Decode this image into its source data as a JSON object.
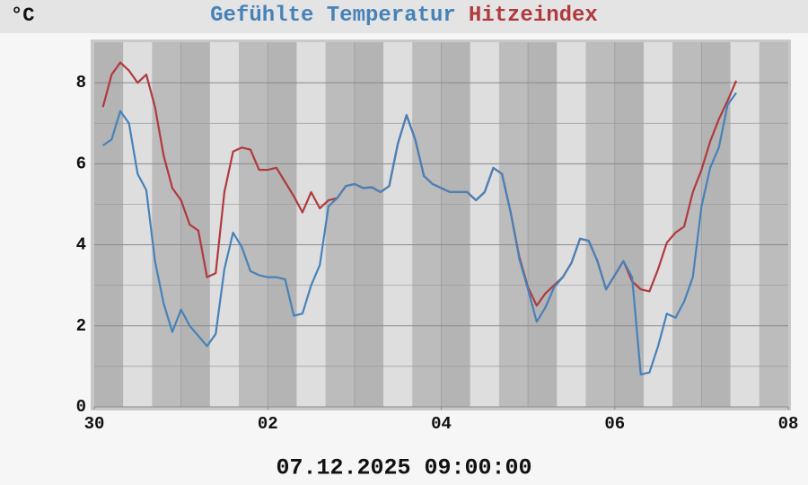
{
  "chart_data": {
    "type": "line",
    "y_label": "°C",
    "footer": "07.12.2025 09:00:00",
    "x": [
      0.1,
      0.2,
      0.3,
      0.4,
      0.5,
      0.6,
      0.7,
      0.8,
      0.9,
      1.0,
      1.1,
      1.2,
      1.3,
      1.4,
      1.5,
      1.6,
      1.7,
      1.8,
      1.9,
      2.0,
      2.1,
      2.2,
      2.3,
      2.4,
      2.5,
      2.6,
      2.7,
      2.8,
      2.9,
      3.0,
      3.1,
      3.2,
      3.3,
      3.4,
      3.5,
      3.6,
      3.7,
      3.8,
      3.9,
      4.0,
      4.1,
      4.2,
      4.3,
      4.4,
      4.5,
      4.6,
      4.7,
      4.8,
      4.9,
      5.0,
      5.1,
      5.2,
      5.3,
      5.4,
      5.5,
      5.6,
      5.7,
      5.8,
      5.9,
      6.0,
      6.1,
      6.2,
      6.3,
      6.4,
      6.5,
      6.6,
      6.7,
      6.8,
      6.9,
      7.0,
      7.1,
      7.2,
      7.3,
      7.4
    ],
    "series": [
      {
        "name": "Hitzeindex",
        "color": "#b03a3e",
        "values": [
          7.4,
          8.2,
          8.5,
          8.3,
          8.0,
          8.2,
          7.4,
          6.2,
          5.4,
          5.1,
          4.5,
          4.35,
          3.2,
          3.3,
          5.3,
          6.3,
          6.4,
          6.35,
          5.85,
          5.85,
          5.9,
          5.55,
          5.2,
          4.8,
          5.3,
          4.9,
          5.1,
          5.15,
          5.45,
          5.5,
          5.4,
          5.42,
          5.3,
          5.45,
          6.5,
          7.2,
          6.6,
          5.7,
          5.5,
          5.4,
          5.3,
          5.3,
          5.3,
          5.1,
          5.3,
          5.9,
          5.75,
          4.8,
          3.7,
          2.95,
          2.5,
          2.8,
          3.0,
          3.2,
          3.55,
          4.15,
          4.1,
          3.6,
          2.9,
          3.25,
          3.6,
          3.1,
          2.9,
          2.85,
          3.4,
          4.05,
          4.3,
          4.45,
          5.3,
          5.85,
          6.55,
          7.1,
          7.55,
          8.05
        ]
      },
      {
        "name": "Gefühlte Temperatur",
        "color": "#4682b9",
        "values": [
          6.45,
          6.6,
          7.3,
          7.0,
          5.75,
          5.35,
          3.6,
          2.55,
          1.85,
          2.4,
          2.0,
          1.75,
          1.5,
          1.8,
          3.4,
          4.3,
          3.95,
          3.35,
          3.25,
          3.2,
          3.2,
          3.15,
          2.25,
          2.3,
          3.0,
          3.5,
          4.95,
          5.15,
          5.45,
          5.5,
          5.4,
          5.42,
          5.3,
          5.45,
          6.5,
          7.2,
          6.6,
          5.7,
          5.5,
          5.4,
          5.3,
          5.3,
          5.3,
          5.1,
          5.3,
          5.9,
          5.75,
          4.8,
          3.65,
          2.9,
          2.1,
          2.45,
          2.95,
          3.2,
          3.55,
          4.15,
          4.1,
          3.6,
          2.9,
          3.25,
          3.6,
          3.2,
          0.8,
          0.85,
          1.5,
          2.3,
          2.2,
          2.6,
          3.2,
          4.95,
          5.9,
          6.4,
          7.45,
          7.75
        ]
      }
    ],
    "xlim": [
      0,
      8
    ],
    "xticks": [
      {
        "value": 0,
        "label": "30"
      },
      {
        "value": 2,
        "label": "02"
      },
      {
        "value": 4,
        "label": "04"
      },
      {
        "value": 6,
        "label": "06"
      },
      {
        "value": 8,
        "label": "08"
      }
    ],
    "ylim": [
      0,
      9
    ],
    "yticks": [
      0,
      2,
      4,
      6,
      8
    ],
    "y_minor_ticks": [
      1,
      3,
      5,
      7
    ],
    "grid": true
  }
}
